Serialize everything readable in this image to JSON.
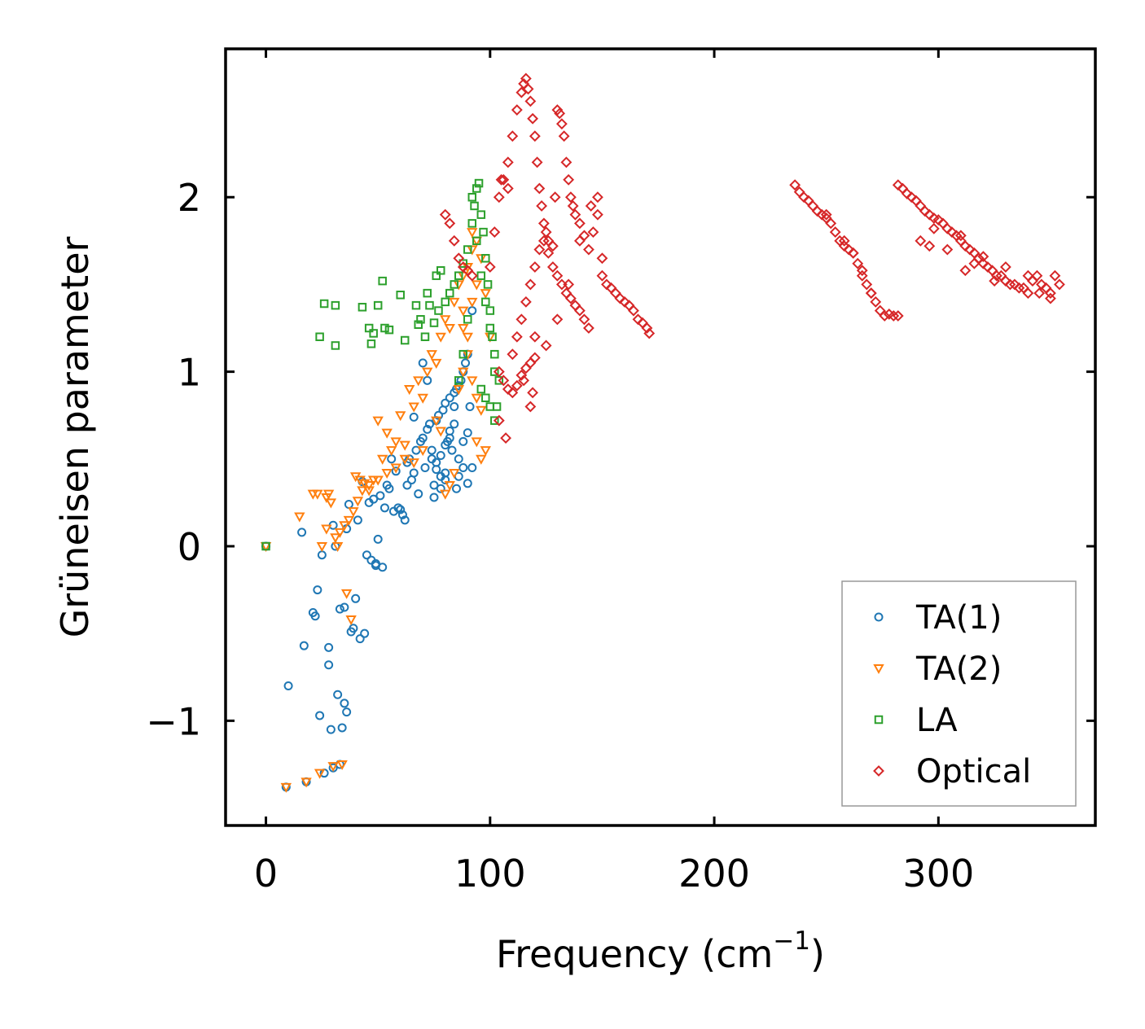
{
  "chart_data": {
    "type": "scatter",
    "title": "",
    "xlabel": "Frequency (cm",
    "xlabel_sup": "−1",
    "xlabel_end": ")",
    "ylabel": "Grüneisen parameter",
    "xlim": [
      -18,
      370
    ],
    "ylim": [
      -1.6,
      2.85
    ],
    "xticks": [
      0,
      100,
      200,
      300
    ],
    "xtick_labels": [
      "0",
      "100",
      "200",
      "300"
    ],
    "yticks": [
      -1,
      0,
      1,
      2
    ],
    "ytick_labels": [
      "−1",
      "0",
      "1",
      "2"
    ],
    "legend_position": "lower-right",
    "series": [
      {
        "name": "TA(1)",
        "marker": "circle",
        "color": "#1f77b4",
        "x": [
          0,
          9,
          10,
          16,
          17,
          18,
          23,
          24,
          26,
          28,
          29,
          30,
          31,
          32,
          34,
          35,
          36,
          37,
          38,
          39,
          40,
          41,
          42,
          43,
          44,
          46,
          48,
          49,
          50,
          51,
          52,
          53,
          54,
          55,
          56,
          57,
          58,
          59,
          60,
          61,
          62,
          63,
          64,
          65,
          66,
          67,
          68,
          69,
          70,
          71,
          72,
          73,
          74,
          75,
          76,
          77,
          78,
          79,
          80,
          81,
          82,
          83,
          84,
          85,
          86,
          87,
          88,
          89,
          90,
          91,
          92,
          33,
          35,
          36,
          28,
          25,
          30,
          21,
          22,
          33,
          45,
          47,
          49,
          63,
          66,
          70,
          72,
          74,
          76,
          78,
          80,
          82,
          84,
          86,
          88,
          90,
          75,
          80,
          85,
          88,
          90,
          92,
          86,
          84,
          82,
          80,
          78,
          76
        ],
        "y": [
          0,
          -1.38,
          -0.8,
          0.08,
          -0.57,
          -1.35,
          -0.25,
          -0.97,
          -1.3,
          -0.68,
          -1.05,
          -1.27,
          0.0,
          -0.85,
          -1.04,
          -0.35,
          0.1,
          0.24,
          -0.49,
          -0.47,
          -0.3,
          0.15,
          -0.53,
          0.37,
          -0.5,
          0.25,
          0.27,
          -0.1,
          0.04,
          0.29,
          -0.12,
          0.22,
          0.35,
          0.33,
          0.5,
          0.2,
          0.43,
          0.22,
          0.21,
          0.18,
          0.15,
          0.48,
          0.5,
          0.38,
          0.42,
          0.55,
          0.3,
          0.6,
          0.62,
          0.45,
          0.67,
          0.7,
          0.5,
          0.35,
          0.72,
          0.75,
          0.4,
          0.78,
          0.82,
          0.6,
          0.85,
          0.55,
          0.88,
          0.9,
          0.5,
          0.95,
          1.0,
          1.05,
          1.1,
          0.8,
          1.35,
          -1.25,
          -0.9,
          -0.95,
          -0.58,
          -0.05,
          0.12,
          -0.38,
          -0.4,
          -0.36,
          -0.05,
          -0.08,
          -0.11,
          0.35,
          0.74,
          1.05,
          0.95,
          0.55,
          0.48,
          0.33,
          0.42,
          0.62,
          0.7,
          0.4,
          0.45,
          0.36,
          0.28,
          0.38,
          0.33,
          0.6,
          0.65,
          0.45,
          0.92,
          0.8,
          0.66,
          0.58,
          0.52,
          0.44
        ]
      },
      {
        "name": "TA(2)",
        "marker": "triangle-down",
        "color": "#ff7f0e",
        "x": [
          0,
          9,
          15,
          18,
          21,
          24,
          27,
          28,
          30,
          32,
          34,
          36,
          38,
          40,
          42,
          44,
          46,
          48,
          50,
          52,
          54,
          56,
          58,
          60,
          62,
          64,
          66,
          68,
          70,
          72,
          74,
          76,
          78,
          80,
          82,
          84,
          86,
          88,
          90,
          92,
          94,
          96,
          98,
          100,
          80,
          82,
          84,
          86,
          88,
          90,
          92,
          94,
          76,
          78,
          70,
          66,
          62,
          58,
          54,
          50,
          46,
          43,
          41,
          39,
          37,
          35,
          33,
          31,
          29,
          27,
          25,
          23,
          86,
          88,
          90,
          92,
          94,
          96,
          98,
          96,
          94,
          92,
          90,
          88
        ],
        "y": [
          0,
          -1.38,
          0.17,
          -1.35,
          0.3,
          -1.3,
          0.28,
          0.3,
          -1.26,
          0.0,
          -1.25,
          -0.27,
          -0.42,
          0.4,
          0.38,
          0.36,
          0.32,
          0.38,
          0.72,
          0.5,
          0.65,
          0.55,
          0.6,
          0.75,
          0.58,
          0.9,
          0.8,
          0.95,
          0.85,
          1.0,
          1.1,
          1.05,
          1.2,
          1.3,
          1.25,
          1.4,
          1.5,
          1.55,
          1.6,
          1.7,
          1.75,
          1.65,
          1.45,
          1.2,
          0.3,
          0.35,
          0.42,
          0.9,
          1.35,
          1.6,
          1.8,
          0.6,
          0.72,
          0.66,
          0.55,
          0.48,
          0.5,
          0.45,
          0.42,
          0.38,
          0.35,
          0.32,
          0.26,
          0.2,
          0.15,
          0.12,
          0.08,
          0.05,
          0.25,
          0.1,
          0.0,
          0.3,
          0.9,
          1.0,
          1.2,
          1.4,
          1.5,
          0.5,
          0.55,
          0.78,
          0.85,
          0.95,
          1.1,
          1.25
        ]
      },
      {
        "name": "LA",
        "marker": "square",
        "color": "#2ca02c",
        "x": [
          0,
          24,
          26,
          31,
          31,
          43,
          46,
          47,
          48,
          50,
          52,
          53,
          55,
          60,
          62,
          67,
          68,
          69,
          71,
          72,
          73,
          75,
          76,
          77,
          78,
          80,
          82,
          84,
          86,
          88,
          90,
          92,
          93,
          94,
          95,
          96,
          97,
          98,
          99,
          100,
          101,
          102,
          103,
          92,
          94,
          96,
          98,
          100,
          102,
          104,
          96,
          98,
          100,
          102,
          90,
          88,
          86
        ],
        "y": [
          0,
          1.2,
          1.39,
          1.38,
          1.15,
          1.37,
          1.25,
          1.16,
          1.22,
          1.38,
          1.52,
          1.25,
          1.24,
          1.44,
          1.18,
          1.38,
          1.27,
          1.3,
          1.2,
          1.45,
          1.38,
          1.28,
          1.55,
          1.35,
          1.58,
          1.4,
          1.45,
          1.5,
          1.55,
          1.62,
          1.7,
          1.85,
          1.95,
          2.05,
          2.08,
          1.9,
          1.8,
          1.65,
          1.5,
          1.35,
          1.2,
          1.0,
          0.8,
          2.0,
          1.75,
          1.55,
          1.4,
          1.25,
          1.1,
          0.95,
          0.9,
          0.85,
          0.8,
          0.72,
          1.3,
          1.1,
          0.95
        ]
      },
      {
        "name": "Optical",
        "marker": "diamond",
        "color": "#d62728",
        "x": [
          80,
          82,
          84,
          86,
          88,
          90,
          92,
          100,
          102,
          104,
          106,
          108,
          110,
          112,
          114,
          115,
          116,
          117,
          118,
          119,
          120,
          121,
          122,
          123,
          124,
          125,
          126,
          128,
          129,
          130,
          131,
          132,
          133,
          134,
          135,
          136,
          137,
          138,
          140,
          142,
          144,
          146,
          148,
          150,
          152,
          154,
          156,
          158,
          160,
          162,
          164,
          166,
          168,
          170,
          171,
          110,
          112,
          114,
          116,
          118,
          120,
          122,
          124,
          126,
          128,
          130,
          132,
          134,
          136,
          138,
          140,
          142,
          144,
          104,
          106,
          108,
          110,
          112,
          114,
          116,
          118,
          120,
          104,
          107,
          115,
          118,
          119,
          105,
          108,
          120,
          125,
          130,
          135,
          140,
          145,
          148,
          150,
          236,
          238,
          240,
          242,
          244,
          246,
          248,
          250,
          252,
          254,
          256,
          258,
          260,
          262,
          264,
          266,
          268,
          270,
          272,
          274,
          276,
          278,
          280,
          282,
          250,
          258,
          262,
          266,
          270,
          282,
          284,
          286,
          288,
          290,
          292,
          294,
          296,
          298,
          300,
          302,
          304,
          306,
          308,
          310,
          312,
          314,
          316,
          318,
          320,
          322,
          324,
          326,
          328,
          330,
          332,
          334,
          336,
          338,
          340,
          342,
          344,
          346,
          348,
          350,
          352,
          354,
          292,
          298,
          304,
          310,
          320,
          330,
          340,
          350,
          296,
          312,
          316,
          325,
          345
        ],
        "y": [
          1.9,
          1.85,
          1.75,
          1.65,
          1.6,
          1.58,
          1.55,
          1.6,
          1.8,
          2.0,
          2.1,
          2.2,
          2.35,
          2.5,
          2.6,
          2.65,
          2.68,
          2.62,
          2.55,
          2.45,
          2.35,
          2.2,
          2.05,
          1.95,
          1.85,
          1.8,
          1.75,
          1.72,
          2.0,
          2.5,
          2.48,
          2.42,
          2.35,
          2.2,
          2.1,
          2.0,
          1.95,
          1.9,
          1.85,
          1.78,
          1.7,
          1.8,
          1.9,
          1.55,
          1.5,
          1.48,
          1.45,
          1.42,
          1.4,
          1.38,
          1.35,
          1.3,
          1.28,
          1.25,
          1.22,
          1.1,
          1.2,
          1.3,
          1.4,
          1.5,
          1.6,
          1.7,
          1.75,
          1.68,
          1.6,
          1.55,
          1.5,
          1.45,
          1.42,
          1.38,
          1.35,
          1.3,
          1.25,
          1.0,
          0.95,
          0.9,
          0.88,
          0.92,
          0.98,
          1.02,
          1.05,
          1.08,
          0.72,
          0.62,
          0.95,
          0.8,
          0.88,
          2.1,
          2.05,
          1.2,
          1.15,
          1.3,
          1.5,
          1.75,
          1.95,
          2.0,
          1.65,
          2.07,
          2.03,
          2.0,
          1.98,
          1.95,
          1.92,
          1.9,
          1.88,
          1.85,
          1.8,
          1.75,
          1.72,
          1.7,
          1.68,
          1.62,
          1.58,
          1.5,
          1.45,
          1.4,
          1.35,
          1.32,
          1.33,
          1.32,
          1.32,
          1.9,
          1.75,
          1.68,
          1.55,
          1.45,
          2.07,
          2.05,
          2.02,
          2.0,
          1.98,
          1.95,
          1.92,
          1.9,
          1.88,
          1.87,
          1.85,
          1.82,
          1.8,
          1.78,
          1.75,
          1.72,
          1.7,
          1.68,
          1.65,
          1.62,
          1.6,
          1.58,
          1.55,
          1.55,
          1.52,
          1.5,
          1.5,
          1.48,
          1.48,
          1.45,
          1.52,
          1.55,
          1.5,
          1.48,
          1.45,
          1.55,
          1.5,
          1.75,
          1.82,
          1.7,
          1.78,
          1.66,
          1.6,
          1.55,
          1.42,
          1.72,
          1.58,
          1.62,
          1.52,
          1.45
        ]
      }
    ]
  }
}
